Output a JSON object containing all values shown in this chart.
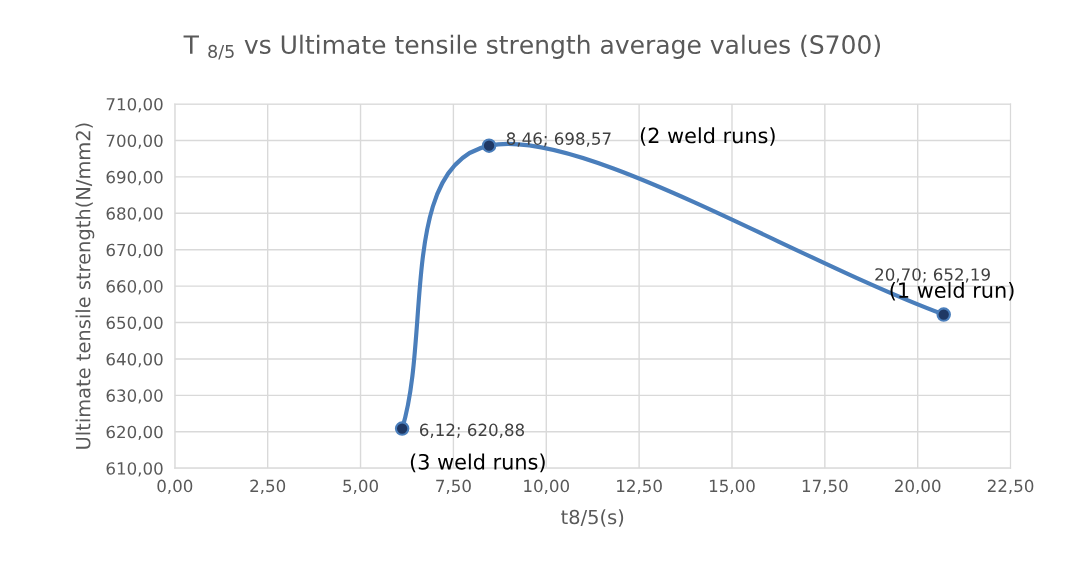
{
  "chart_data": {
    "type": "line",
    "title": "T $_{8/5}$ vs Ultimate tensile strength average values (S700)",
    "xlabel": "t8/5(s)",
    "ylabel": "Ultimate tensile strength(N/mm2)",
    "x": [
      6.12,
      8.46,
      20.7
    ],
    "series": [
      {
        "color": "#4a7ebb",
        "values": [
          620.88,
          698.57,
          652.19
        ],
        "value_labels": [
          "6,12; 620,88",
          "8,46; 698,57",
          "20,70; 652,19"
        ]
      }
    ],
    "marker": "circle",
    "line_style": "solid",
    "grid": true,
    "legend": false,
    "xlim": [
      0,
      22.5
    ],
    "ylim": [
      610,
      710
    ],
    "xticks": [
      {
        "value": 0,
        "label": "0,00"
      },
      {
        "value": 2.5,
        "label": "2,50"
      },
      {
        "value": 5,
        "label": "5,00"
      },
      {
        "value": 7.5,
        "label": "7,50"
      },
      {
        "value": 10,
        "label": "10,00"
      },
      {
        "value": 12.5,
        "label": "12,50"
      },
      {
        "value": 15,
        "label": "15,00"
      },
      {
        "value": 17.5,
        "label": "17,50"
      },
      {
        "value": 20,
        "label": "20,00"
      },
      {
        "value": 22.5,
        "label": "22,50"
      }
    ],
    "yticks": [
      {
        "value": 610,
        "label": "610,00"
      },
      {
        "value": 620,
        "label": "620,00"
      },
      {
        "value": 630,
        "label": "630,00"
      },
      {
        "value": 640,
        "label": "640,00"
      },
      {
        "value": 650,
        "label": "650,00"
      },
      {
        "value": 660,
        "label": "660,00"
      },
      {
        "value": 670,
        "label": "670,00"
      },
      {
        "value": 680,
        "label": "680,00"
      },
      {
        "value": 690,
        "label": "690,00"
      },
      {
        "value": 700,
        "label": "700,00"
      },
      {
        "value": 710,
        "label": "710,00"
      }
    ],
    "annotations": [
      "(3 weld runs)",
      "(2 weld runs)",
      "(1 weld run)"
    ]
  }
}
